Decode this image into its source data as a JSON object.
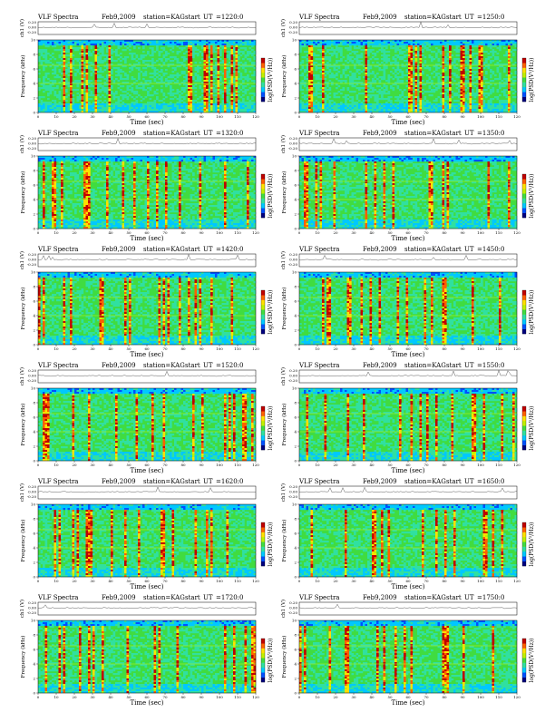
{
  "figure": {
    "title": "VLF Spectra",
    "date": "Feb9,2009",
    "station": "station=KAG",
    "start_prefix": "start",
    "ut_prefix": "UT",
    "ch_label": "ch1 (V)",
    "freq_label": "Frequency (kHz)",
    "xlabel": "Time (sec)",
    "colorbar_label": "log(PSD(V²/Hz))",
    "voltage_ticks": [
      "0.20",
      "0.00",
      "-0.20"
    ]
  },
  "chart_data": [
    {
      "type": "heatmap",
      "title": "VLF Spectra",
      "date": "Feb9,2009",
      "station": "station=KAG",
      "start_ut": "=1220:0",
      "xlabel": "Time (sec)",
      "ylabel": "Frequency (kHz)",
      "xlim": [
        0,
        120
      ],
      "ylim": [
        0,
        10
      ],
      "x_ticks": [
        "0",
        "10",
        "20",
        "30",
        "40",
        "50",
        "60",
        "70",
        "80",
        "90",
        "100",
        "110",
        "120"
      ],
      "y_ticks": [
        "0",
        "2",
        "4",
        "6",
        "8",
        "10"
      ],
      "colorbar_label": "log(PSD(V²/Hz))",
      "colormap": [
        "#00007f",
        "#0050ff",
        "#00c8ff",
        "#30e0a0",
        "#40dc40",
        "#c0f000",
        "#ffe000",
        "#ff6000",
        "#c00000"
      ],
      "voltage_trace_label": "ch1 (V)"
    },
    {
      "type": "heatmap",
      "title": "VLF Spectra",
      "date": "Feb9,2009",
      "station": "station=KAG",
      "start_ut": "=1250:0",
      "xlabel": "Time (sec)",
      "ylabel": "Frequency (kHz)",
      "xlim": [
        0,
        120
      ],
      "ylim": [
        0,
        10
      ],
      "x_ticks": [
        "0",
        "10",
        "20",
        "30",
        "40",
        "50",
        "60",
        "70",
        "80",
        "90",
        "100",
        "110",
        "120"
      ],
      "y_ticks": [
        "0",
        "2",
        "4",
        "6",
        "8",
        "10"
      ],
      "colorbar_label": "log(PSD(V²/Hz))",
      "colormap": [
        "#00007f",
        "#0050ff",
        "#00c8ff",
        "#30e0a0",
        "#40dc40",
        "#c0f000",
        "#ffe000",
        "#ff6000",
        "#c00000"
      ],
      "voltage_trace_label": "ch1 (V)"
    },
    {
      "type": "heatmap",
      "title": "VLF Spectra",
      "date": "Feb9,2009",
      "station": "station=KAG",
      "start_ut": "=1320:0",
      "xlabel": "Time (sec)",
      "ylabel": "Frequency (kHz)",
      "xlim": [
        0,
        120
      ],
      "ylim": [
        0,
        10
      ],
      "x_ticks": [
        "0",
        "10",
        "20",
        "30",
        "40",
        "50",
        "60",
        "70",
        "80",
        "90",
        "100",
        "110",
        "120"
      ],
      "y_ticks": [
        "0",
        "2",
        "4",
        "6",
        "8",
        "10"
      ],
      "colorbar_label": "log(PSD(V²/Hz))",
      "colormap": [
        "#00007f",
        "#0050ff",
        "#00c8ff",
        "#30e0a0",
        "#40dc40",
        "#c0f000",
        "#ffe000",
        "#ff6000",
        "#c00000"
      ],
      "voltage_trace_label": "ch1 (V)"
    },
    {
      "type": "heatmap",
      "title": "VLF Spectra",
      "date": "Feb9,2009",
      "station": "station=KAG",
      "start_ut": "=1350:0",
      "xlabel": "Time (sec)",
      "ylabel": "Frequency (kHz)",
      "xlim": [
        0,
        120
      ],
      "ylim": [
        0,
        10
      ],
      "x_ticks": [
        "0",
        "10",
        "20",
        "30",
        "40",
        "50",
        "60",
        "70",
        "80",
        "90",
        "100",
        "110",
        "120"
      ],
      "y_ticks": [
        "0",
        "2",
        "4",
        "6",
        "8",
        "10"
      ],
      "colorbar_label": "log(PSD(V²/Hz))",
      "colormap": [
        "#00007f",
        "#0050ff",
        "#00c8ff",
        "#30e0a0",
        "#40dc40",
        "#c0f000",
        "#ffe000",
        "#ff6000",
        "#c00000"
      ],
      "voltage_trace_label": "ch1 (V)"
    },
    {
      "type": "heatmap",
      "title": "VLF Spectra",
      "date": "Feb9,2009",
      "station": "station=KAG",
      "start_ut": "=1420:0",
      "xlabel": "Time (sec)",
      "ylabel": "Frequency (kHz)",
      "xlim": [
        0,
        120
      ],
      "ylim": [
        0,
        10
      ],
      "x_ticks": [
        "0",
        "10",
        "20",
        "30",
        "40",
        "50",
        "60",
        "70",
        "80",
        "90",
        "100",
        "110",
        "120"
      ],
      "y_ticks": [
        "0",
        "2",
        "4",
        "6",
        "8",
        "10"
      ],
      "colorbar_label": "log(PSD(V²/Hz))",
      "colormap": [
        "#00007f",
        "#0050ff",
        "#00c8ff",
        "#30e0a0",
        "#40dc40",
        "#c0f000",
        "#ffe000",
        "#ff6000",
        "#c00000"
      ],
      "voltage_trace_label": "ch1 (V)"
    },
    {
      "type": "heatmap",
      "title": "VLF Spectra",
      "date": "Feb9,2009",
      "station": "station=KAG",
      "start_ut": "=1450:0",
      "xlabel": "Time (sec)",
      "ylabel": "Frequency (kHz)",
      "xlim": [
        0,
        120
      ],
      "ylim": [
        0,
        10
      ],
      "x_ticks": [
        "0",
        "10",
        "20",
        "30",
        "40",
        "50",
        "60",
        "70",
        "80",
        "90",
        "100",
        "110",
        "120"
      ],
      "y_ticks": [
        "0",
        "2",
        "4",
        "6",
        "8",
        "10"
      ],
      "colorbar_label": "log(PSD(V²/Hz))",
      "colormap": [
        "#00007f",
        "#0050ff",
        "#00c8ff",
        "#30e0a0",
        "#40dc40",
        "#c0f000",
        "#ffe000",
        "#ff6000",
        "#c00000"
      ],
      "voltage_trace_label": "ch1 (V)"
    },
    {
      "type": "heatmap",
      "title": "VLF Spectra",
      "date": "Feb9,2009",
      "station": "station=KAG",
      "start_ut": "=1520:0",
      "xlabel": "Time (sec)",
      "ylabel": "Frequency (kHz)",
      "xlim": [
        0,
        120
      ],
      "ylim": [
        0,
        10
      ],
      "x_ticks": [
        "0",
        "10",
        "20",
        "30",
        "40",
        "50",
        "60",
        "70",
        "80",
        "90",
        "100",
        "110",
        "120"
      ],
      "y_ticks": [
        "0",
        "2",
        "4",
        "6",
        "8",
        "10"
      ],
      "colorbar_label": "log(PSD(V²/Hz))",
      "colormap": [
        "#00007f",
        "#0050ff",
        "#00c8ff",
        "#30e0a0",
        "#40dc40",
        "#c0f000",
        "#ffe000",
        "#ff6000",
        "#c00000"
      ],
      "voltage_trace_label": "ch1 (V)"
    },
    {
      "type": "heatmap",
      "title": "VLF Spectra",
      "date": "Feb9,2009",
      "station": "station=KAG",
      "start_ut": "=1550:0",
      "xlabel": "Time (sec)",
      "ylabel": "Frequency (kHz)",
      "xlim": [
        0,
        120
      ],
      "ylim": [
        0,
        10
      ],
      "x_ticks": [
        "0",
        "10",
        "20",
        "30",
        "40",
        "50",
        "60",
        "70",
        "80",
        "90",
        "100",
        "110",
        "120"
      ],
      "y_ticks": [
        "0",
        "2",
        "4",
        "6",
        "8",
        "10"
      ],
      "colorbar_label": "log(PSD(V²/Hz))",
      "colormap": [
        "#00007f",
        "#0050ff",
        "#00c8ff",
        "#30e0a0",
        "#40dc40",
        "#c0f000",
        "#ffe000",
        "#ff6000",
        "#c00000"
      ],
      "voltage_trace_label": "ch1 (V)"
    },
    {
      "type": "heatmap",
      "title": "VLF Spectra",
      "date": "Feb9,2009",
      "station": "station=KAG",
      "start_ut": "=1620:0",
      "xlabel": "Time (sec)",
      "ylabel": "Frequency (kHz)",
      "xlim": [
        0,
        120
      ],
      "ylim": [
        0,
        10
      ],
      "x_ticks": [
        "0",
        "10",
        "20",
        "30",
        "40",
        "50",
        "60",
        "70",
        "80",
        "90",
        "100",
        "110",
        "120"
      ],
      "y_ticks": [
        "0",
        "2",
        "4",
        "6",
        "8",
        "10"
      ],
      "colorbar_label": "log(PSD(V²/Hz))",
      "colormap": [
        "#00007f",
        "#0050ff",
        "#00c8ff",
        "#30e0a0",
        "#40dc40",
        "#c0f000",
        "#ffe000",
        "#ff6000",
        "#c00000"
      ],
      "voltage_trace_label": "ch1 (V)"
    },
    {
      "type": "heatmap",
      "title": "VLF Spectra",
      "date": "Feb9,2009",
      "station": "station=KAG",
      "start_ut": "=1650:0",
      "xlabel": "Time (sec)",
      "ylabel": "Frequency (kHz)",
      "xlim": [
        0,
        120
      ],
      "ylim": [
        0,
        10
      ],
      "x_ticks": [
        "0",
        "10",
        "20",
        "30",
        "40",
        "50",
        "60",
        "70",
        "80",
        "90",
        "100",
        "110",
        "120"
      ],
      "y_ticks": [
        "0",
        "2",
        "4",
        "6",
        "8",
        "10"
      ],
      "colorbar_label": "log(PSD(V²/Hz))",
      "colormap": [
        "#00007f",
        "#0050ff",
        "#00c8ff",
        "#30e0a0",
        "#40dc40",
        "#c0f000",
        "#ffe000",
        "#ff6000",
        "#c00000"
      ],
      "voltage_trace_label": "ch1 (V)"
    },
    {
      "type": "heatmap",
      "title": "VLF Spectra",
      "date": "Feb9,2009",
      "station": "station=KAG",
      "start_ut": "=1720:0",
      "xlabel": "Time (sec)",
      "ylabel": "Frequency (kHz)",
      "xlim": [
        0,
        120
      ],
      "ylim": [
        0,
        10
      ],
      "x_ticks": [
        "0",
        "10",
        "20",
        "30",
        "40",
        "50",
        "60",
        "70",
        "80",
        "90",
        "100",
        "110",
        "120"
      ],
      "y_ticks": [
        "0",
        "2",
        "4",
        "6",
        "8",
        "10"
      ],
      "colorbar_label": "log(PSD(V²/Hz))",
      "colormap": [
        "#00007f",
        "#0050ff",
        "#00c8ff",
        "#30e0a0",
        "#40dc40",
        "#c0f000",
        "#ffe000",
        "#ff6000",
        "#c00000"
      ],
      "voltage_trace_label": "ch1 (V)"
    },
    {
      "type": "heatmap",
      "title": "VLF Spectra",
      "date": "Feb9,2009",
      "station": "station=KAG",
      "start_ut": "=1750:0",
      "xlabel": "Time (sec)",
      "ylabel": "Frequency (kHz)",
      "xlim": [
        0,
        120
      ],
      "ylim": [
        0,
        10
      ],
      "x_ticks": [
        "0",
        "10",
        "20",
        "30",
        "40",
        "50",
        "60",
        "70",
        "80",
        "90",
        "100",
        "110",
        "120"
      ],
      "y_ticks": [
        "0",
        "2",
        "4",
        "6",
        "8",
        "10"
      ],
      "colorbar_label": "log(PSD(V²/Hz))",
      "colormap": [
        "#00007f",
        "#0050ff",
        "#00c8ff",
        "#30e0a0",
        "#40dc40",
        "#c0f000",
        "#ffe000",
        "#ff6000",
        "#c00000"
      ],
      "voltage_trace_label": "ch1 (V)"
    }
  ]
}
